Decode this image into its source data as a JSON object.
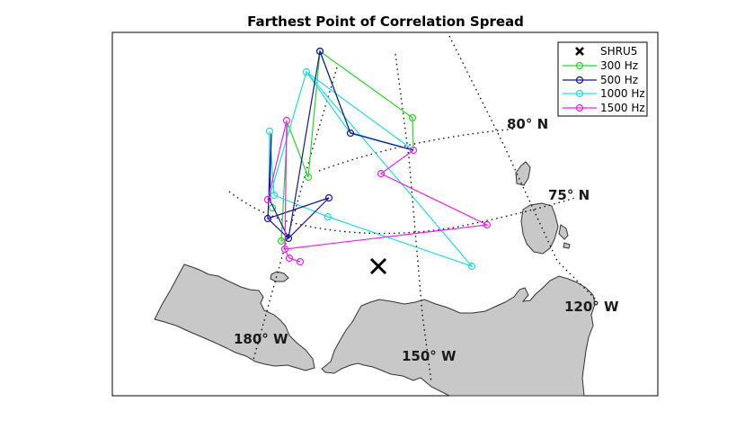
{
  "title": "Farthest Point of Correlation Spread",
  "legend": {
    "placement": "top-right",
    "entries": [
      {
        "label": "SHRU5",
        "marker": "x",
        "color": "#000000"
      },
      {
        "label": "300 Hz",
        "marker": "o",
        "color": "#22dd22"
      },
      {
        "label": "500 Hz",
        "marker": "o",
        "color": "#1414a0"
      },
      {
        "label": "1000 Hz",
        "marker": "o",
        "color": "#22dddd"
      },
      {
        "label": "1500 Hz",
        "marker": "o",
        "color": "#ee22ee"
      }
    ]
  },
  "grid_labels": {
    "lat_80": "80° N",
    "lat_75": "75° N",
    "lon_120": "120° W",
    "lon_150": "150° W",
    "lon_180": "180° W"
  },
  "colors": {
    "land": "#c8c8c8",
    "coast": "#333333",
    "grid": "#000000",
    "frame": "#000000"
  },
  "chart_data": {
    "type": "scatter",
    "title": "Farthest Point of Correlation Spread",
    "grid": true,
    "legend_placement": "top-right"
  }
}
